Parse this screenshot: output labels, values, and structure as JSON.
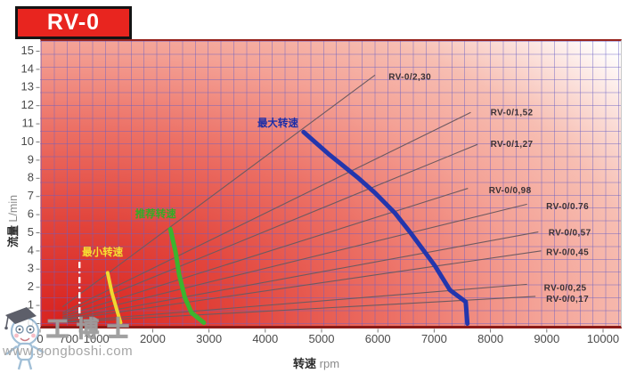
{
  "title": "RV-0",
  "watermark": {
    "brand": "工博士",
    "url": "www.gongboshi.com"
  },
  "colors": {
    "title_bg": "#e8251f",
    "title_border": "#141414",
    "grid_line": "#7b74c4",
    "plot_gradient": [
      "#d8231f",
      "#e2453c",
      "#ec7065",
      "#f4a195",
      "#f7beb2",
      "#ffffff"
    ],
    "displacement_line": "#6e5a60",
    "axis_text": "#4a4a4a",
    "min_speed_guide": "#ffffff"
  },
  "chart_data": {
    "type": "line",
    "title": "RV-0",
    "xlabel": "转速",
    "xlabel_unit": "rpm",
    "ylabel": "流量",
    "ylabel_unit": "L/min",
    "xlim": [
      0,
      10330
    ],
    "ylim": [
      0,
      15.6
    ],
    "grid": true,
    "legend_position": "none",
    "x_ticks": [
      0,
      700,
      1000,
      2000,
      3000,
      4000,
      5000,
      6000,
      7000,
      8000,
      9000,
      10000
    ],
    "y_ticks": [
      0,
      1,
      2,
      3,
      4,
      5,
      6,
      7,
      8,
      9,
      10,
      11,
      12,
      13,
      14,
      15
    ],
    "displacement_lines": [
      {
        "label": "RV-0/2,30",
        "displacement_cm3_rev": 2.3,
        "rpm_start": 400,
        "rpm_end": 5950,
        "label_at": [
          6190,
          13.56
        ]
      },
      {
        "label": "RV-0/1,52",
        "displacement_cm3_rev": 1.52,
        "rpm_start": 400,
        "rpm_end": 7650,
        "label_at": [
          8000,
          11.61
        ]
      },
      {
        "label": "RV-0/1,27",
        "displacement_cm3_rev": 1.27,
        "rpm_start": 400,
        "rpm_end": 7770,
        "label_at": [
          8000,
          9.85
        ]
      },
      {
        "label": "RV-0/0,98",
        "displacement_cm3_rev": 0.98,
        "rpm_start": 400,
        "rpm_end": 7600,
        "label_at": [
          7970,
          7.32
        ]
      },
      {
        "label": "RV-0/0.76",
        "displacement_cm3_rev": 0.76,
        "rpm_start": 400,
        "rpm_end": 8650,
        "label_at": [
          8990,
          6.44
        ]
      },
      {
        "label": "RV-0/0,57",
        "displacement_cm3_rev": 0.57,
        "rpm_start": 400,
        "rpm_end": 8850,
        "label_at": [
          9030,
          4.98
        ]
      },
      {
        "label": "RV-0/0,45",
        "displacement_cm3_rev": 0.45,
        "rpm_start": 400,
        "rpm_end": 8900,
        "label_at": [
          8990,
          3.9
        ]
      },
      {
        "label": "RV-0/0,25",
        "displacement_cm3_rev": 0.25,
        "rpm_start": 400,
        "rpm_end": 8650,
        "label_at": [
          8950,
          1.95
        ]
      },
      {
        "label": "RV-0/0,17",
        "displacement_cm3_rev": 0.17,
        "rpm_start": 400,
        "rpm_end": 8800,
        "label_at": [
          8990,
          1.32
        ]
      }
    ],
    "curves": [
      {
        "name": "max-speed",
        "label": "最大转速",
        "color": "#2336ad",
        "label_color": "#1b2da8",
        "width": 5,
        "points": [
          [
            4680,
            10.55
          ],
          [
            5120,
            9.35
          ],
          [
            5280,
            8.95
          ],
          [
            5640,
            8.05
          ],
          [
            5950,
            7.2
          ],
          [
            6300,
            6.1
          ],
          [
            6580,
            5.0
          ],
          [
            7010,
            3.2
          ],
          [
            7280,
            1.85
          ],
          [
            7560,
            1.2
          ],
          [
            7590,
            0
          ]
        ],
        "label_at": [
          3860,
          11.0
        ]
      },
      {
        "name": "recommended-speed",
        "label": "推荐转速",
        "color": "#3cb42e",
        "label_color": "#2fae27",
        "width": 5,
        "points": [
          [
            2315,
            5.2
          ],
          [
            2410,
            3.9
          ],
          [
            2470,
            2.7
          ],
          [
            2570,
            1.45
          ],
          [
            2690,
            0.6
          ],
          [
            2910,
            0.05
          ]
        ],
        "label_at": [
          1690,
          6.0
        ]
      },
      {
        "name": "min-speed",
        "label": "最小转速",
        "color": "#f0d930",
        "label_color": "#f6e233",
        "width": 4,
        "points": [
          [
            1200,
            2.8
          ],
          [
            1275,
            1.7
          ],
          [
            1355,
            0.85
          ],
          [
            1430,
            0.05
          ]
        ],
        "label_at": [
          745,
          3.9
        ]
      }
    ],
    "min_speed_guide": {
      "rpm": 700,
      "flow_range": [
        0.15,
        3.4
      ],
      "style": "white-dashed"
    }
  }
}
